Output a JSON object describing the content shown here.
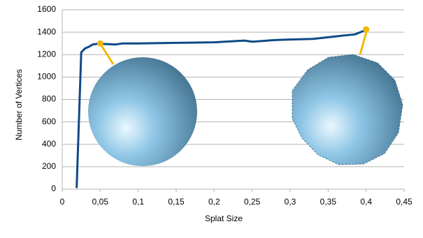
{
  "chart_data": {
    "type": "line",
    "x_label": "Splat Size",
    "y_label": "Number of Vertices",
    "xlim": [
      0,
      0.45
    ],
    "xticks": [
      0,
      {
        "value": 0.05,
        "label": "0,05"
      },
      {
        "value": 0.1,
        "label": "0,1"
      },
      {
        "value": 0.15,
        "label": "0,15"
      },
      {
        "value": 0.2,
        "label": "0,2"
      },
      {
        "value": 0.25,
        "label": "0,25"
      },
      {
        "value": 0.3,
        "label": "0,3"
      },
      {
        "value": 0.35,
        "label": "0,35"
      },
      {
        "value": 0.4,
        "label": "0,4"
      },
      {
        "value": 0.45,
        "label": "0,45"
      }
    ],
    "ylim": [
      0,
      1600
    ],
    "yticks": [
      0,
      200,
      400,
      600,
      800,
      1000,
      1200,
      1400,
      1600
    ],
    "grid": true,
    "series": [
      {
        "color": "#0e4a86",
        "x": [
          0.019,
          0.025,
          0.03,
          0.035,
          0.04,
          0.05,
          0.055,
          0.07,
          0.08,
          0.1,
          0.15,
          0.2,
          0.24,
          0.25,
          0.28,
          0.3,
          0.33,
          0.35,
          0.37,
          0.385,
          0.4
        ],
        "values": [
          10,
          1220,
          1255,
          1270,
          1290,
          1300,
          1295,
          1290,
          1300,
          1300,
          1305,
          1310,
          1325,
          1315,
          1330,
          1335,
          1340,
          1355,
          1370,
          1380,
          1420
        ]
      },
      {
        "color": "#f5b800",
        "x": [
          0.05,
          0.4
        ],
        "values": [
          1300,
          1425
        ]
      }
    ]
  }
}
